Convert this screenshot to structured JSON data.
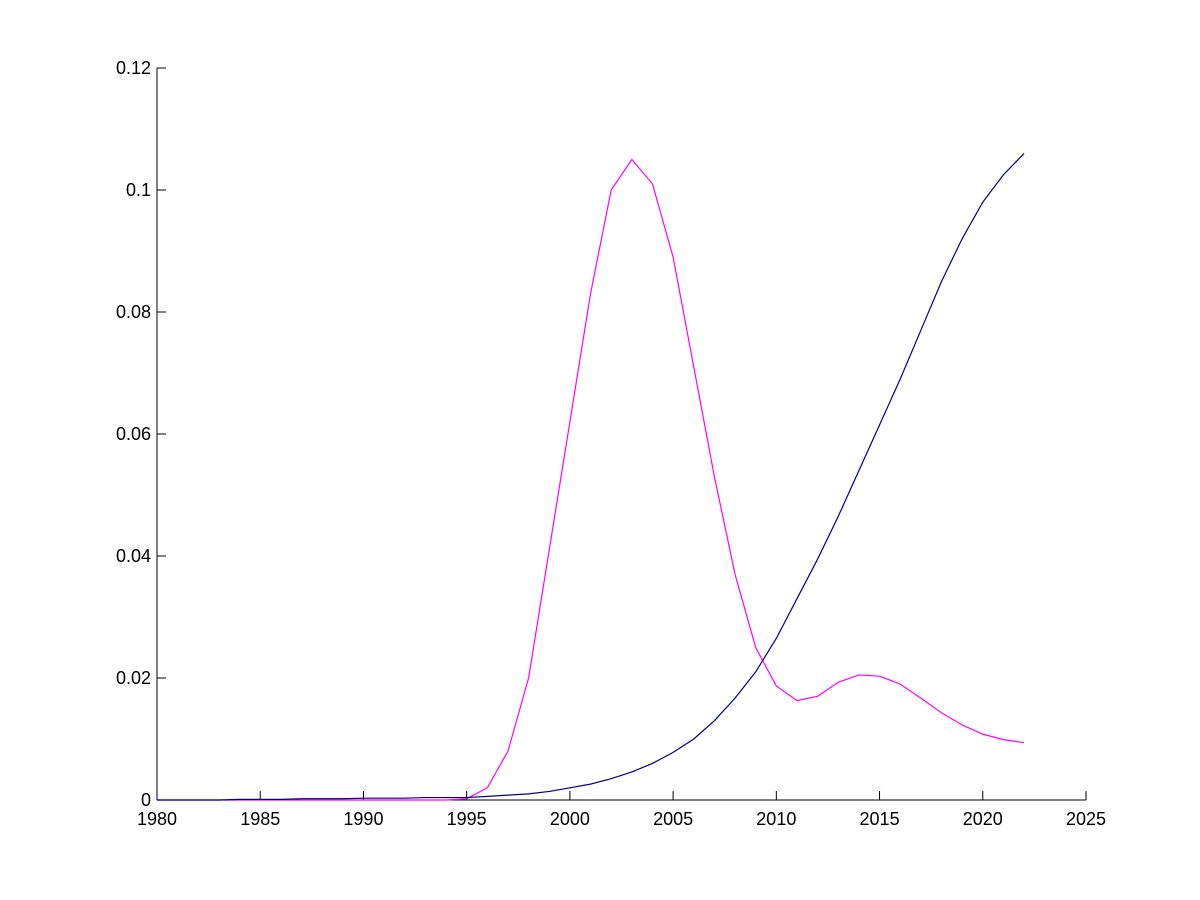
{
  "chart_data": {
    "type": "line",
    "x": [
      1980,
      1981,
      1982,
      1983,
      1984,
      1985,
      1986,
      1987,
      1988,
      1989,
      1990,
      1991,
      1992,
      1993,
      1994,
      1995,
      1996,
      1997,
      1998,
      1999,
      2000,
      2001,
      2002,
      2003,
      2004,
      2005,
      2006,
      2007,
      2008,
      2009,
      2010,
      2011,
      2012,
      2013,
      2014,
      2015,
      2016,
      2017,
      2018,
      2019,
      2020,
      2021,
      2022
    ],
    "series": [
      {
        "color": "#ff00ff",
        "values": [
          0,
          0,
          0,
          0,
          0,
          0,
          0,
          0,
          0,
          0,
          0,
          0,
          0,
          0,
          0,
          0.0002,
          0.002,
          0.008,
          0.02,
          0.041,
          0.062,
          0.083,
          0.1,
          0.105,
          0.101,
          0.089,
          0.071,
          0.053,
          0.037,
          0.025,
          0.0187,
          0.0163,
          0.017,
          0.0193,
          0.0205,
          0.0203,
          0.019,
          0.0167,
          0.0143,
          0.0123,
          0.0108,
          0.0099,
          0.0094
        ]
      },
      {
        "color": "#00008b",
        "values": [
          0,
          0,
          0,
          0,
          0.0001,
          0.0001,
          0.0001,
          0.0002,
          0.0002,
          0.0002,
          0.0003,
          0.0003,
          0.0003,
          0.0004,
          0.0004,
          0.0004,
          0.0006,
          0.0008,
          0.001,
          0.0014,
          0.002,
          0.0026,
          0.0035,
          0.0046,
          0.006,
          0.0078,
          0.01,
          0.013,
          0.0167,
          0.021,
          0.0265,
          0.033,
          0.0395,
          0.0465,
          0.054,
          0.0615,
          0.069,
          0.077,
          0.085,
          0.092,
          0.098,
          0.1025,
          0.106
        ]
      }
    ],
    "xlim": [
      1980,
      2025
    ],
    "xticks": [
      1980,
      1985,
      1990,
      1995,
      2000,
      2005,
      2010,
      2015,
      2020,
      2025
    ],
    "ylim": [
      0,
      0.12
    ],
    "yticks": [
      0,
      0.02,
      0.04,
      0.06,
      0.08,
      0.1,
      0.12
    ]
  }
}
